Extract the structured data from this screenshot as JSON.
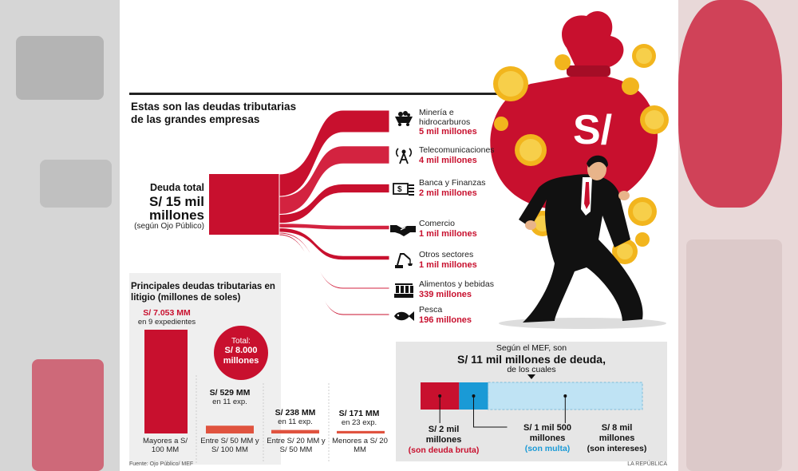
{
  "title": "Estas son las deudas tributarias de las grandes empresas",
  "total": {
    "label": "Deuda total",
    "value": "S/ 15 mil millones",
    "note": "(según Ojo Público)"
  },
  "bag_symbol": "S/",
  "chart_data": [
    {
      "type": "sankey",
      "source": "Deuda total",
      "flows": [
        {
          "name": "Minería e hidrocarburos",
          "label": "5 mil millones",
          "value": 5000,
          "icon": "mining-cart-icon"
        },
        {
          "name": "Telecomunicaciones",
          "label": "4 mil millones",
          "value": 4000,
          "icon": "antenna-icon"
        },
        {
          "name": "Banca y Finanzas",
          "label": "2 mil millones",
          "value": 2000,
          "icon": "money-icon"
        },
        {
          "name": "Comercio",
          "label": "1 mil millones",
          "value": 1000,
          "icon": "handshake-icon"
        },
        {
          "name": "Otros sectores",
          "label": "1 mil millones",
          "value": 1000,
          "icon": "crane-icon"
        },
        {
          "name": "Alimentos y bebidas",
          "label": "339 millones",
          "value": 339,
          "icon": "factory-icon"
        },
        {
          "name": "Pesca",
          "label": "196 millones",
          "value": 196,
          "icon": "fish-icon"
        }
      ]
    },
    {
      "type": "bar",
      "title": "Principales deudas tributarias en litigio (millones de soles)",
      "total_label": "Total:",
      "total_value": "S/ 8.000 millones",
      "bars": [
        {
          "category": "Mayores a S/ 100 MM",
          "value": 7053,
          "value_label": "S/ 7.053 MM",
          "count_label": "en 9 expedientes"
        },
        {
          "category": "Entre S/ 50 MM y S/ 100 MM",
          "value": 529,
          "value_label": "S/ 529 MM",
          "count_label": "en 11 exp."
        },
        {
          "category": "Entre S/ 20 MM y S/ 50 MM",
          "value": 238,
          "value_label": "S/ 238 MM",
          "count_label": "en 11 exp."
        },
        {
          "category": "Menores a S/ 20 MM",
          "value": 171,
          "value_label": "S/ 171 MM",
          "count_label": "en 23 exp."
        }
      ]
    },
    {
      "type": "stacked-bar",
      "intro": "Según el MEF, son",
      "headline": "S/ 11 mil millones de deuda,",
      "subline": "de los cuales",
      "segments": [
        {
          "value": 2000,
          "amount": "S/ 2 mil millones",
          "desc": "(son deuda bruta)",
          "color": "#c8102e"
        },
        {
          "value": 1500,
          "amount": "S/ 1 mil 500 millones",
          "desc": "(son multa)",
          "color": "#1a9ad6"
        },
        {
          "value": 8000,
          "amount": "S/ 8 mil millones",
          "desc": "(son intereses)",
          "color": "#bfe3f4"
        }
      ]
    }
  ],
  "source": "Fuente: Ojo Público/ MEF",
  "credit": "LA REPÚBLICA",
  "colors": {
    "accent": "#c8102e",
    "blue": "#1a9ad6",
    "lightblue": "#bfe3f4"
  }
}
